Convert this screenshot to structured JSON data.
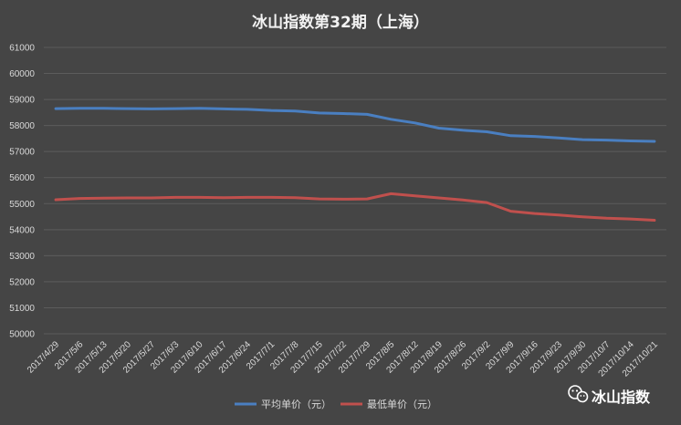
{
  "chart_data": {
    "type": "line",
    "title": "冰山指数第32期（上海）",
    "x": [
      "2017/4/29",
      "2017/5/6",
      "2017/5/13",
      "2017/5/20",
      "2017/5/27",
      "2017/6/3",
      "2017/6/10",
      "2017/6/17",
      "2017/6/24",
      "2017/7/1",
      "2017/7/8",
      "2017/7/15",
      "2017/7/22",
      "2017/7/29",
      "2017/8/5",
      "2017/8/12",
      "2017/8/19",
      "2017/8/26",
      "2017/9/2",
      "2017/9/9",
      "2017/9/16",
      "2017/9/23",
      "2017/9/30",
      "2017/10/7",
      "2017/10/14",
      "2017/10/21"
    ],
    "series": [
      {
        "name": "平均单价（元）",
        "color": "#4a7fc1",
        "values": [
          58650,
          58660,
          58660,
          58650,
          58640,
          58650,
          58660,
          58640,
          58620,
          58580,
          58560,
          58480,
          58460,
          58430,
          58240,
          58100,
          57900,
          57820,
          57760,
          57610,
          57580,
          57520,
          57460,
          57440,
          57410,
          57390
        ]
      },
      {
        "name": "最低单价（元）",
        "color": "#c0504d",
        "values": [
          55150,
          55200,
          55210,
          55220,
          55220,
          55240,
          55240,
          55230,
          55240,
          55240,
          55230,
          55180,
          55170,
          55180,
          55380,
          55300,
          55220,
          55140,
          55040,
          54710,
          54620,
          54560,
          54490,
          54440,
          54410,
          54360
        ]
      }
    ],
    "ylim": [
      50000,
      61000
    ],
    "yticks": [
      "50000",
      "51000",
      "52000",
      "53000",
      "54000",
      "55000",
      "56000",
      "57000",
      "58000",
      "59000",
      "60000",
      "61000"
    ],
    "grid": true,
    "legend": "bottom"
  },
  "watermark": {
    "text": "冰山指数",
    "icon": "wechat-icon"
  }
}
